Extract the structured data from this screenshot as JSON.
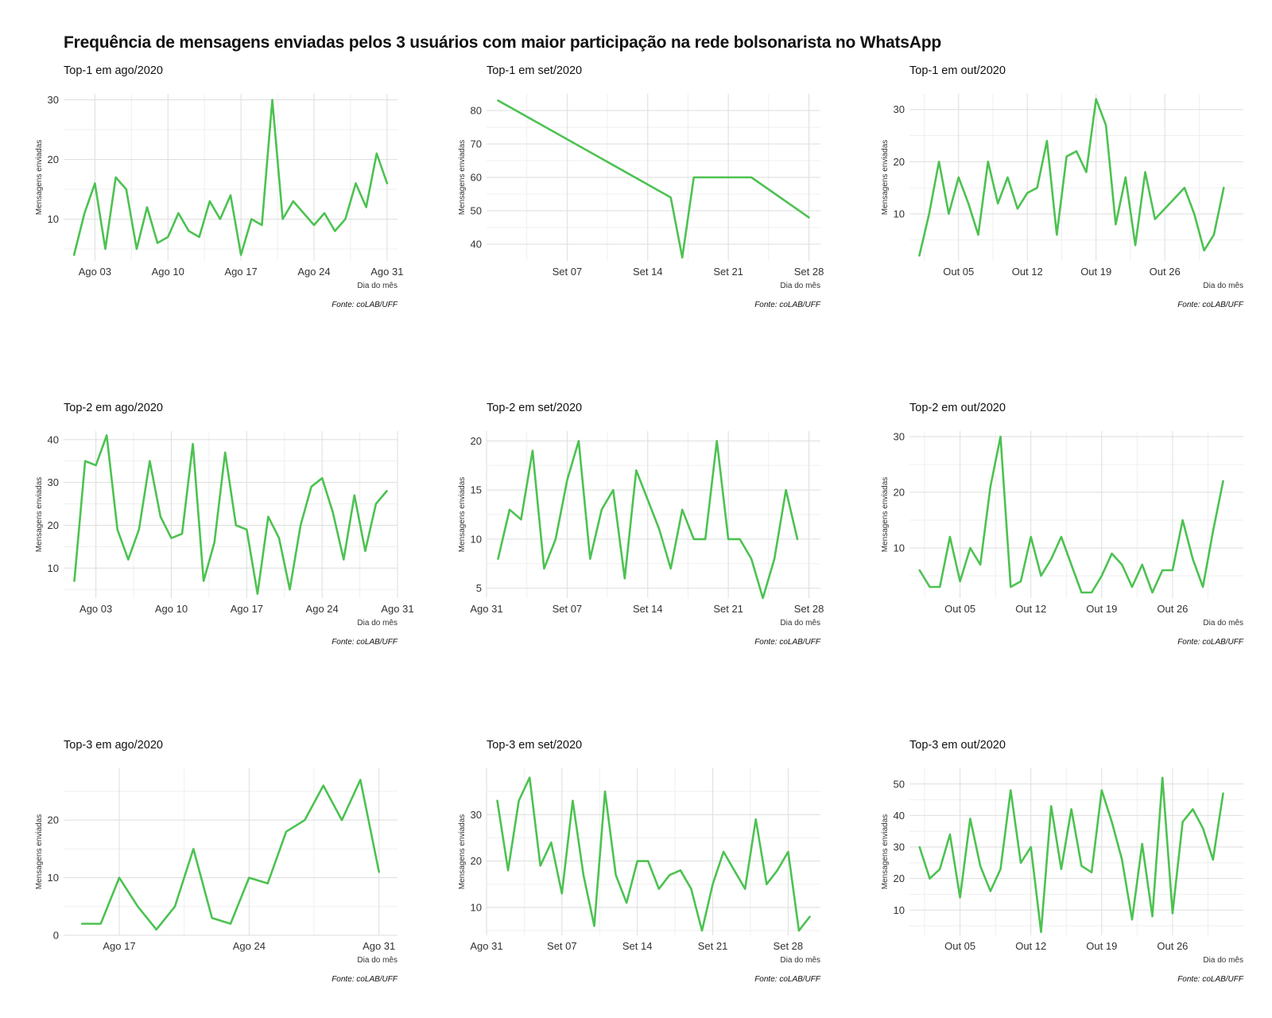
{
  "title": "Frequência de mensagens enviadas pelos 3 usuários com maior participação na rede bolsonarista no WhatsApp",
  "line_color": "#4cc251",
  "chart_data": [
    {
      "type": "line",
      "title": "Top-1 em ago/2020",
      "xlabel": "Dia do mês",
      "ylabel": "Mensagens enviadas",
      "caption": "Fonte: coLAB/UFF",
      "x": [
        "2020-08-01",
        "2020-08-02",
        "2020-08-03",
        "2020-08-04",
        "2020-08-05",
        "2020-08-06",
        "2020-08-07",
        "2020-08-08",
        "2020-08-09",
        "2020-08-10",
        "2020-08-11",
        "2020-08-12",
        "2020-08-13",
        "2020-08-14",
        "2020-08-15",
        "2020-08-16",
        "2020-08-17",
        "2020-08-18",
        "2020-08-19",
        "2020-08-20",
        "2020-08-21",
        "2020-08-22",
        "2020-08-23",
        "2020-08-24",
        "2020-08-25",
        "2020-08-26",
        "2020-08-27",
        "2020-08-28",
        "2020-08-29",
        "2020-08-30",
        "2020-08-31"
      ],
      "values": [
        4,
        11,
        16,
        5,
        17,
        15,
        5,
        12,
        6,
        7,
        11,
        8,
        7,
        13,
        10,
        14,
        4,
        10,
        9,
        30,
        10,
        13,
        11,
        9,
        11,
        8,
        10,
        16,
        12,
        21,
        16
      ],
      "xlim": [
        "2020-07-31",
        "2020-09-01"
      ],
      "ylim": [
        3,
        31
      ],
      "yticks": [
        10,
        20,
        30
      ],
      "xticks": [
        "2020-08-03",
        "2020-08-10",
        "2020-08-17",
        "2020-08-24",
        "2020-08-31"
      ],
      "xtick_labels": [
        "Ago 03",
        "Ago 10",
        "Ago 17",
        "Ago 24",
        "Ago 31"
      ]
    },
    {
      "type": "line",
      "title": "Top-1 em set/2020",
      "xlabel": "Dia do mês",
      "ylabel": "Mensagens enviadas",
      "caption": "Fonte: coLAB/UFF",
      "x": [
        "2020-09-01",
        "2020-09-16",
        "2020-09-17",
        "2020-09-18",
        "2020-09-23",
        "2020-09-28"
      ],
      "values": [
        83,
        54,
        36,
        60,
        60,
        48
      ],
      "xlim": [
        "2020-08-31",
        "2020-09-29"
      ],
      "ylim": [
        35,
        85
      ],
      "yticks": [
        40,
        50,
        60,
        70,
        80
      ],
      "xticks": [
        "2020-09-07",
        "2020-09-14",
        "2020-09-21",
        "2020-09-28"
      ],
      "xtick_labels": [
        "Set 07",
        "Set 14",
        "Set 21",
        "Set 28"
      ]
    },
    {
      "type": "line",
      "title": "Top-1 em out/2020",
      "xlabel": "Dia do mês",
      "ylabel": "Mensagens enviadas",
      "caption": "Fonte: coLAB/UFF",
      "x": [
        "2020-10-01",
        "2020-10-02",
        "2020-10-03",
        "2020-10-04",
        "2020-10-05",
        "2020-10-06",
        "2020-10-07",
        "2020-10-08",
        "2020-10-09",
        "2020-10-10",
        "2020-10-11",
        "2020-10-12",
        "2020-10-13",
        "2020-10-14",
        "2020-10-15",
        "2020-10-16",
        "2020-10-17",
        "2020-10-18",
        "2020-10-19",
        "2020-10-20",
        "2020-10-21",
        "2020-10-22",
        "2020-10-23",
        "2020-10-24",
        "2020-10-25",
        "2020-10-26",
        "2020-10-27",
        "2020-10-28",
        "2020-10-29",
        "2020-10-30",
        "2020-10-31"
      ],
      "values": [
        2,
        10,
        20,
        10,
        17,
        12,
        6,
        20,
        12,
        17,
        11,
        14,
        15,
        24,
        6,
        21,
        22,
        18,
        32,
        27,
        8,
        17,
        4,
        18,
        9,
        11,
        13,
        15,
        10,
        3,
        6
      ],
      "extra_x": [
        "2020-11-01"
      ],
      "extra_values": [
        15
      ],
      "xlim": [
        "2020-09-30",
        "2020-11-03"
      ],
      "ylim": [
        1,
        33
      ],
      "yticks": [
        10,
        20,
        30
      ],
      "xticks": [
        "2020-10-05",
        "2020-10-12",
        "2020-10-19",
        "2020-10-26"
      ],
      "xtick_labels": [
        "Out 05",
        "Out 12",
        "Out 19",
        "Out 26"
      ]
    },
    {
      "type": "line",
      "title": "Top-2 em ago/2020",
      "xlabel": "Dia do mês",
      "ylabel": "Mensagens enviadas",
      "caption": "Fonte: coLAB/UFF",
      "x": [
        "2020-08-01",
        "2020-08-02",
        "2020-08-03",
        "2020-08-04",
        "2020-08-05",
        "2020-08-06",
        "2020-08-07",
        "2020-08-08",
        "2020-08-09",
        "2020-08-10",
        "2020-08-11",
        "2020-08-12",
        "2020-08-13",
        "2020-08-14",
        "2020-08-15",
        "2020-08-16",
        "2020-08-17",
        "2020-08-18",
        "2020-08-19",
        "2020-08-20",
        "2020-08-21",
        "2020-08-22",
        "2020-08-23",
        "2020-08-24",
        "2020-08-25",
        "2020-08-26",
        "2020-08-27",
        "2020-08-28",
        "2020-08-29",
        "2020-08-30"
      ],
      "values": [
        7,
        35,
        34,
        41,
        19,
        12,
        19,
        35,
        22,
        17,
        18,
        39,
        7,
        16,
        37,
        20,
        19,
        4,
        22,
        17,
        5,
        20,
        29,
        31,
        23,
        12,
        27,
        14,
        25,
        28
      ],
      "xlim": [
        "2020-07-31",
        "2020-08-31"
      ],
      "ylim": [
        3,
        42
      ],
      "yticks": [
        10,
        20,
        30,
        40
      ],
      "xticks": [
        "2020-08-03",
        "2020-08-10",
        "2020-08-17",
        "2020-08-24",
        "2020-08-31"
      ],
      "xtick_labels": [
        "Ago 03",
        "Ago 10",
        "Ago 17",
        "Ago 24",
        "Ago 31"
      ]
    },
    {
      "type": "line",
      "title": "Top-2 em set/2020",
      "xlabel": "Dia do mês",
      "ylabel": "Mensagens enviadas",
      "caption": "Fonte: coLAB/UFF",
      "x": [
        "2020-09-01",
        "2020-09-02",
        "2020-09-03",
        "2020-09-04",
        "2020-09-05",
        "2020-09-06",
        "2020-09-07",
        "2020-09-08",
        "2020-09-09",
        "2020-09-10",
        "2020-09-11",
        "2020-09-12",
        "2020-09-13",
        "2020-09-14",
        "2020-09-15",
        "2020-09-16",
        "2020-09-17",
        "2020-09-18",
        "2020-09-19",
        "2020-09-20",
        "2020-09-21",
        "2020-09-22",
        "2020-09-23",
        "2020-09-24",
        "2020-09-25",
        "2020-09-26",
        "2020-09-27",
        "2020-09-28"
      ],
      "values": [
        8,
        13,
        12,
        19,
        7,
        10,
        16,
        20,
        8,
        13,
        15,
        6,
        17,
        14,
        11,
        7,
        13,
        10,
        10,
        20,
        10,
        10,
        8,
        4,
        8,
        15,
        10,
        null
      ],
      "xlim": [
        "2020-08-31",
        "2020-09-29"
      ],
      "ylim": [
        4,
        21
      ],
      "yticks": [
        5,
        10,
        15,
        20
      ],
      "xticks": [
        "2020-08-31",
        "2020-09-07",
        "2020-09-14",
        "2020-09-21",
        "2020-09-28"
      ],
      "xtick_labels": [
        "Ago 31",
        "Set 07",
        "Set 14",
        "Set 21",
        "Set 28"
      ]
    },
    {
      "type": "line",
      "title": "Top-2 em out/2020",
      "xlabel": "Dia do mês",
      "ylabel": "Mensagens enviadas",
      "caption": "Fonte: coLAB/UFF",
      "x": [
        "2020-10-01",
        "2020-10-02",
        "2020-10-03",
        "2020-10-04",
        "2020-10-05",
        "2020-10-06",
        "2020-10-07",
        "2020-10-08",
        "2020-10-09",
        "2020-10-10",
        "2020-10-11",
        "2020-10-12",
        "2020-10-13",
        "2020-10-14",
        "2020-10-15",
        "2020-10-16",
        "2020-10-17",
        "2020-10-18",
        "2020-10-19",
        "2020-10-20",
        "2020-10-21",
        "2020-10-22",
        "2020-10-23",
        "2020-10-24",
        "2020-10-25",
        "2020-10-26",
        "2020-10-27",
        "2020-10-28",
        "2020-10-29",
        "2020-10-30",
        "2020-10-31"
      ],
      "values": [
        6,
        3,
        3,
        12,
        4,
        10,
        7,
        21,
        30,
        3,
        4,
        12,
        5,
        8,
        12,
        7,
        2,
        2,
        5,
        9,
        7,
        3,
        7,
        2,
        6,
        6,
        15,
        8,
        3,
        13,
        22
      ],
      "xlim": [
        "2020-09-30",
        "2020-11-02"
      ],
      "ylim": [
        1,
        31
      ],
      "yticks": [
        10,
        20,
        30
      ],
      "xticks": [
        "2020-10-05",
        "2020-10-12",
        "2020-10-19",
        "2020-10-26"
      ],
      "xtick_labels": [
        "Out 05",
        "Out 12",
        "Out 19",
        "Out 26"
      ]
    },
    {
      "type": "line",
      "title": "Top-3 em ago/2020",
      "xlabel": "Dia do mês",
      "ylabel": "Mensagens enviadas",
      "caption": "Fonte: coLAB/UFF",
      "x": [
        "2020-08-15",
        "2020-08-16",
        "2020-08-17",
        "2020-08-18",
        "2020-08-19",
        "2020-08-20",
        "2020-08-21",
        "2020-08-22",
        "2020-08-23",
        "2020-08-24",
        "2020-08-25",
        "2020-08-26",
        "2020-08-27",
        "2020-08-28",
        "2020-08-29",
        "2020-08-30",
        "2020-08-31"
      ],
      "values": [
        2,
        2,
        10,
        5,
        1,
        5,
        15,
        3,
        2,
        10,
        9,
        18,
        20,
        26,
        20,
        27,
        11
      ],
      "xlim": [
        "2020-08-14",
        "2020-09-01"
      ],
      "ylim": [
        0,
        29
      ],
      "yticks": [
        0,
        10,
        20
      ],
      "xticks": [
        "2020-08-17",
        "2020-08-24",
        "2020-08-31"
      ],
      "xtick_labels": [
        "Ago 17",
        "Ago 24",
        "Ago 31"
      ]
    },
    {
      "type": "line",
      "title": "Top-3 em set/2020",
      "xlabel": "Dia do mês",
      "ylabel": "Mensagens enviadas",
      "caption": "Fonte: coLAB/UFF",
      "x": [
        "2020-09-01",
        "2020-09-02",
        "2020-09-03",
        "2020-09-04",
        "2020-09-05",
        "2020-09-06",
        "2020-09-07",
        "2020-09-08",
        "2020-09-09",
        "2020-09-10",
        "2020-09-11",
        "2020-09-12",
        "2020-09-13",
        "2020-09-14",
        "2020-09-15",
        "2020-09-16",
        "2020-09-17",
        "2020-09-18",
        "2020-09-19",
        "2020-09-20",
        "2020-09-21",
        "2020-09-22",
        "2020-09-23",
        "2020-09-24",
        "2020-09-25",
        "2020-09-26",
        "2020-09-27",
        "2020-09-28",
        "2020-09-29",
        "2020-09-30"
      ],
      "values": [
        33,
        18,
        33,
        38,
        19,
        24,
        13,
        33,
        17,
        6,
        35,
        17,
        11,
        20,
        20,
        14,
        17,
        18,
        14,
        5,
        15,
        22,
        18,
        14,
        29,
        15,
        18,
        22,
        5,
        8
      ],
      "xlim": [
        "2020-08-31",
        "2020-10-01"
      ],
      "ylim": [
        4,
        40
      ],
      "yticks": [
        10,
        20,
        30
      ],
      "xticks": [
        "2020-08-31",
        "2020-09-07",
        "2020-09-14",
        "2020-09-21",
        "2020-09-28"
      ],
      "xtick_labels": [
        "Ago 31",
        "Set 07",
        "Set 14",
        "Set 21",
        "Set 28"
      ]
    },
    {
      "type": "line",
      "title": "Top-3 em out/2020",
      "xlabel": "Dia do mês",
      "ylabel": "Mensagens enviadas",
      "caption": "Fonte: coLAB/UFF",
      "x": [
        "2020-10-01",
        "2020-10-02",
        "2020-10-03",
        "2020-10-04",
        "2020-10-05",
        "2020-10-06",
        "2020-10-07",
        "2020-10-08",
        "2020-10-09",
        "2020-10-10",
        "2020-10-11",
        "2020-10-12",
        "2020-10-13",
        "2020-10-14",
        "2020-10-15",
        "2020-10-16",
        "2020-10-17",
        "2020-10-18",
        "2020-10-19",
        "2020-10-20",
        "2020-10-21",
        "2020-10-22",
        "2020-10-23",
        "2020-10-24",
        "2020-10-25",
        "2020-10-26",
        "2020-10-27",
        "2020-10-28",
        "2020-10-29",
        "2020-10-30",
        "2020-10-31"
      ],
      "values": [
        30,
        20,
        23,
        34,
        14,
        39,
        24,
        16,
        23,
        48,
        25,
        30,
        3,
        43,
        23,
        42,
        24,
        22,
        48,
        38,
        26,
        7,
        31,
        8,
        52,
        9,
        38,
        42,
        36,
        26,
        47
      ],
      "xlim": [
        "2020-09-30",
        "2020-11-02"
      ],
      "ylim": [
        2,
        55
      ],
      "yticks": [
        10,
        20,
        30,
        40,
        50
      ],
      "xticks": [
        "2020-10-05",
        "2020-10-12",
        "2020-10-19",
        "2020-10-26"
      ],
      "xtick_labels": [
        "Out 05",
        "Out 12",
        "Out 19",
        "Out 26"
      ]
    }
  ]
}
